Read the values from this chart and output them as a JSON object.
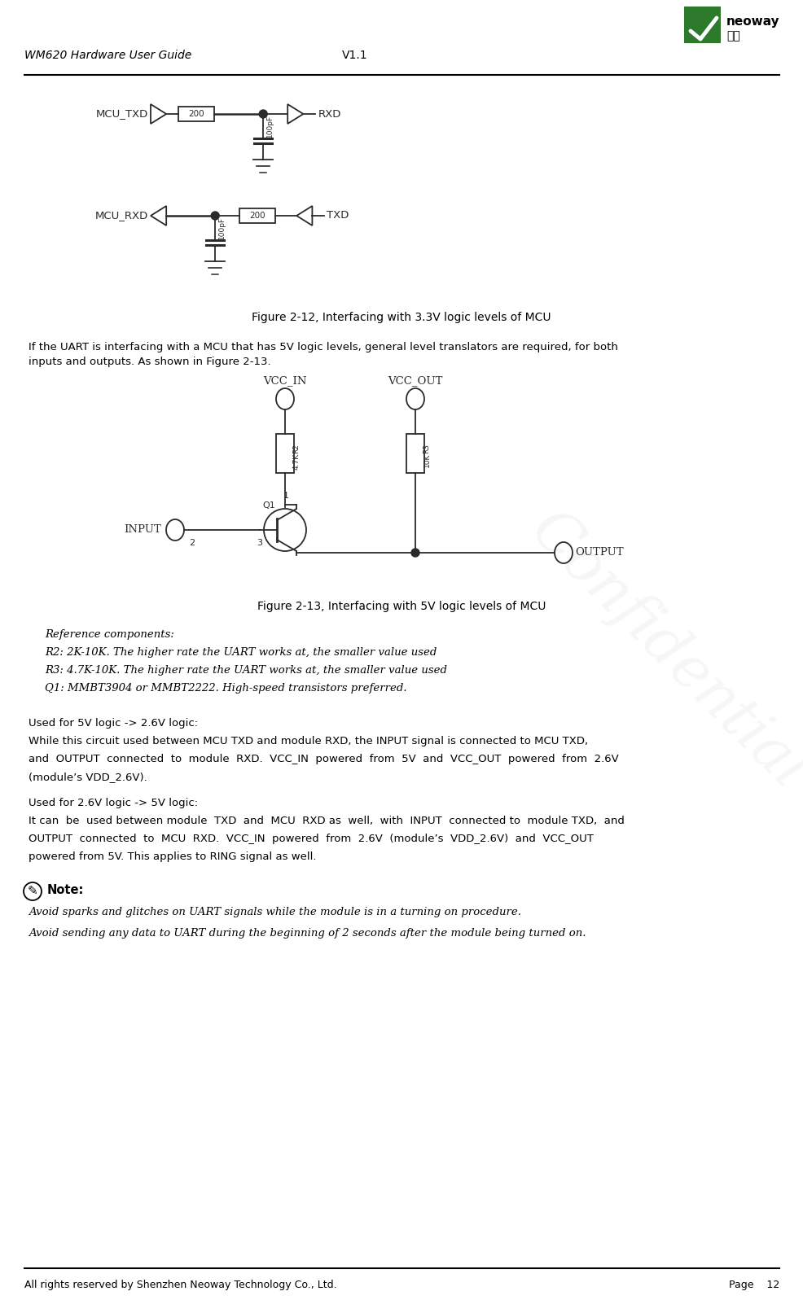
{
  "title_left": "WM620 Hardware User Guide",
  "title_center": "V1.1",
  "footer_left": "All rights reserved by Shenzhen Neoway Technology Co., Ltd.",
  "footer_right": "Page    12",
  "fig_caption_1": "Figure 2-12, Interfacing with 3.3V logic levels of MCU",
  "fig_caption_2": "Figure 2-13, Interfacing with 5V logic levels of MCU",
  "para1_line1": "If the UART is interfacing with a MCU that has 5V logic levels, general level translators are required, for both",
  "para1_line2": "inputs and outputs. As shown in Figure 2-13.",
  "ref_header": "Reference components:",
  "ref_r2": "R2: 2K-10K. The higher rate the UART works at, the smaller value used",
  "ref_r3": "R3: 4.7K-10K. The higher rate the UART works at, the smaller value used",
  "ref_q1": "Q1: MMBT3904 or MMBT2222. High-speed transistors preferred.",
  "used_5v_header": "Used for 5V logic -> 2.6V logic:",
  "used_5v_l1": "While this circuit used between MCU TXD and module RXD, the INPUT signal is connected to MCU TXD,",
  "used_5v_l2": "and  OUTPUT  connected  to  module  RXD.  VCC_IN  powered  from  5V  and  VCC_OUT  powered  from  2.6V",
  "used_5v_l3": "(module’s VDD_2.6V).",
  "used_26v_header": "Used for 2.6V logic -> 5V logic:",
  "used_26v_l1": "It can  be  used between module  TXD  and  MCU  RXD as  well,  with  INPUT  connected to  module TXD,  and",
  "used_26v_l2": "OUTPUT  connected  to  MCU  RXD.  VCC_IN  powered  from  2.6V  (module’s  VDD_2.6V)  and  VCC_OUT",
  "used_26v_l3": "powered from 5V. This applies to RING signal as well.",
  "note_header": "Note:",
  "note_line1": "Avoid sparks and glitches on UART signals while the module is in a turning on procedure.",
  "note_line2": "Avoid sending any data to UART during the beginning of 2 seconds after the module being turned on.",
  "bg_color": "#ffffff",
  "text_color": "#000000",
  "circuit_color": "#2a2a2a",
  "watermark_color": "#d0d0d0"
}
